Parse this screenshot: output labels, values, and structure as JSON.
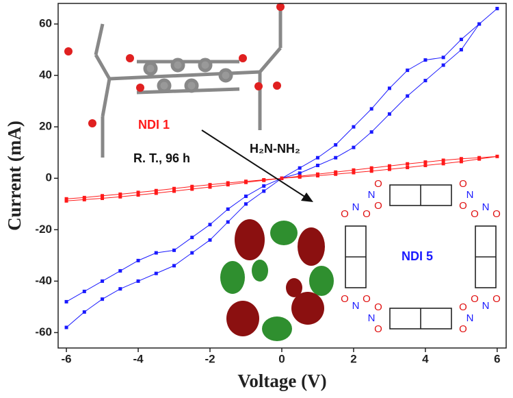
{
  "chart_data": {
    "type": "line",
    "xlabel": "Voltage (V)",
    "ylabel": "Current (mA)",
    "x": [
      -6,
      -5.5,
      -5,
      -4.5,
      -4,
      -3.5,
      -3,
      -2.5,
      -2,
      -1.5,
      -1,
      -0.5,
      0,
      0.5,
      1,
      1.5,
      2,
      2.5,
      3,
      3.5,
      4,
      4.5,
      5,
      5.5,
      6,
      5.5,
      5,
      4.5,
      4,
      3.5,
      3,
      2.5,
      2,
      1.5,
      1,
      0.5,
      0,
      -0.5,
      -1,
      -1.5,
      -2,
      -2.5,
      -3,
      -3.5,
      -4,
      -4.5,
      -5,
      -5.5,
      -6
    ],
    "series": [
      {
        "name": "NDI 5",
        "color": "#1a1aff",
        "values": [
          -58,
          -52,
          -47,
          -43,
          -40,
          -37,
          -34,
          -29,
          -24,
          -17,
          -10,
          -5,
          0,
          4,
          8,
          13,
          20,
          27,
          35,
          42,
          46,
          47,
          54,
          60,
          66,
          60,
          50,
          44,
          38,
          32,
          25,
          18,
          12,
          8,
          5,
          2,
          0,
          -3,
          -7,
          -12,
          -18,
          -23,
          -28,
          -29,
          -32,
          -36,
          -40,
          -44,
          -48
        ]
      },
      {
        "name": "NDI 1",
        "color": "#ff1a1a",
        "values": [
          -8,
          -7.5,
          -6.8,
          -6.2,
          -5.5,
          -4.8,
          -4,
          -3.2,
          -2.5,
          -1.8,
          -1.2,
          -0.6,
          0,
          0.5,
          1,
          1.6,
          2.2,
          2.8,
          3.5,
          4.2,
          5,
          5.7,
          6.5,
          7.5,
          8.5,
          8,
          7.6,
          7,
          6.3,
          5.6,
          4.8,
          4,
          3.2,
          2.4,
          1.6,
          0.8,
          0,
          -0.8,
          -1.6,
          -2.5,
          -3.4,
          -4.2,
          -5,
          -5.8,
          -6.5,
          -7.2,
          -7.8,
          -8.3,
          -8.8
        ]
      }
    ],
    "xlim": [
      -6.23,
      6.25
    ],
    "ylim": [
      -66,
      68
    ],
    "xticks": [
      -6,
      -4,
      -2,
      0,
      2,
      4,
      6
    ],
    "yticks": [
      -60,
      -40,
      -20,
      0,
      20,
      40,
      60
    ],
    "annotations": [
      "R. T., 96 h",
      "H₂N-NH₂"
    ],
    "structure_atoms": [
      "O",
      "N",
      "O",
      "O",
      "N",
      "O",
      "O",
      "N",
      "O",
      "O",
      "N",
      "O",
      "O",
      "N",
      "O",
      "O",
      "N",
      "O",
      "O",
      "N",
      "O",
      "O",
      "N",
      "O"
    ]
  }
}
